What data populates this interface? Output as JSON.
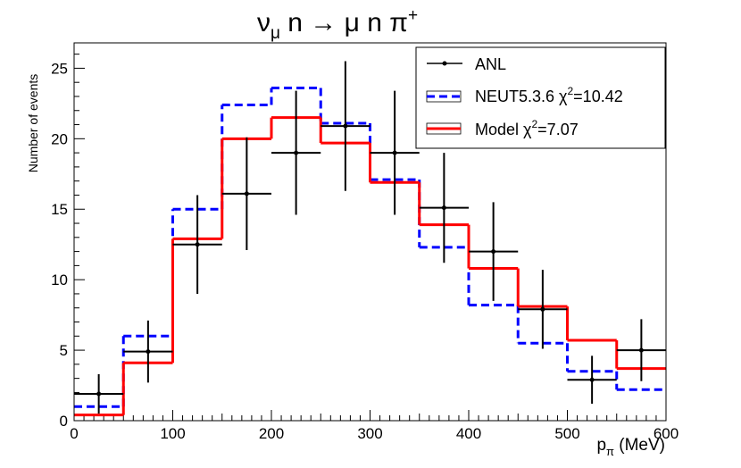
{
  "chart_data": {
    "type": "histogram",
    "title_parts": {
      "nu": "ν",
      "nu_sub": "μ",
      "rest": " n → μ n π",
      "sup": "+"
    },
    "xlabel_parts": {
      "p": "p",
      "sub": "π",
      "unit": " (MeV)"
    },
    "ylabel": "Number of events",
    "xlim": [
      0,
      600
    ],
    "ylim": [
      0,
      26.8
    ],
    "x_ticks": [
      "0",
      "100",
      "200",
      "300",
      "400",
      "500",
      "600"
    ],
    "y_ticks": [
      "0",
      "5",
      "10",
      "15",
      "20",
      "25"
    ],
    "bin_edges": [
      0,
      50,
      100,
      150,
      200,
      250,
      300,
      350,
      400,
      450,
      500,
      550,
      600
    ],
    "series": [
      {
        "name": "ANL",
        "kind": "points",
        "color": "#000000",
        "x": [
          25,
          75,
          125,
          175,
          225,
          275,
          325,
          375,
          425,
          475,
          525,
          575
        ],
        "y": [
          1.9,
          4.9,
          12.5,
          16.1,
          19.0,
          20.9,
          19.0,
          15.1,
          12.0,
          7.9,
          2.9,
          5.0
        ],
        "yerr": [
          1.4,
          2.2,
          3.5,
          4.0,
          4.4,
          4.6,
          4.4,
          3.9,
          3.5,
          2.8,
          1.7,
          2.2
        ]
      },
      {
        "name": "NEUT5.3.6",
        "kind": "step-dashed",
        "color": "#0000ff",
        "values": [
          1.0,
          6.0,
          15.0,
          22.4,
          23.6,
          21.1,
          17.1,
          12.3,
          8.2,
          5.5,
          3.5,
          2.2
        ]
      },
      {
        "name": "Model",
        "kind": "step",
        "color": "#ff0000",
        "values": [
          0.4,
          4.1,
          12.9,
          20.0,
          21.5,
          19.7,
          16.9,
          13.9,
          10.8,
          8.1,
          5.7,
          3.7
        ]
      }
    ],
    "legend": {
      "position": "top-right",
      "entries": [
        {
          "label": "ANL"
        },
        {
          "label_pre": "NEUT5.3.6 χ",
          "label_sup": "2",
          "label_post": "=10.42"
        },
        {
          "label_pre": "Model χ",
          "label_sup": "2",
          "label_post": "=7.07"
        }
      ]
    }
  }
}
